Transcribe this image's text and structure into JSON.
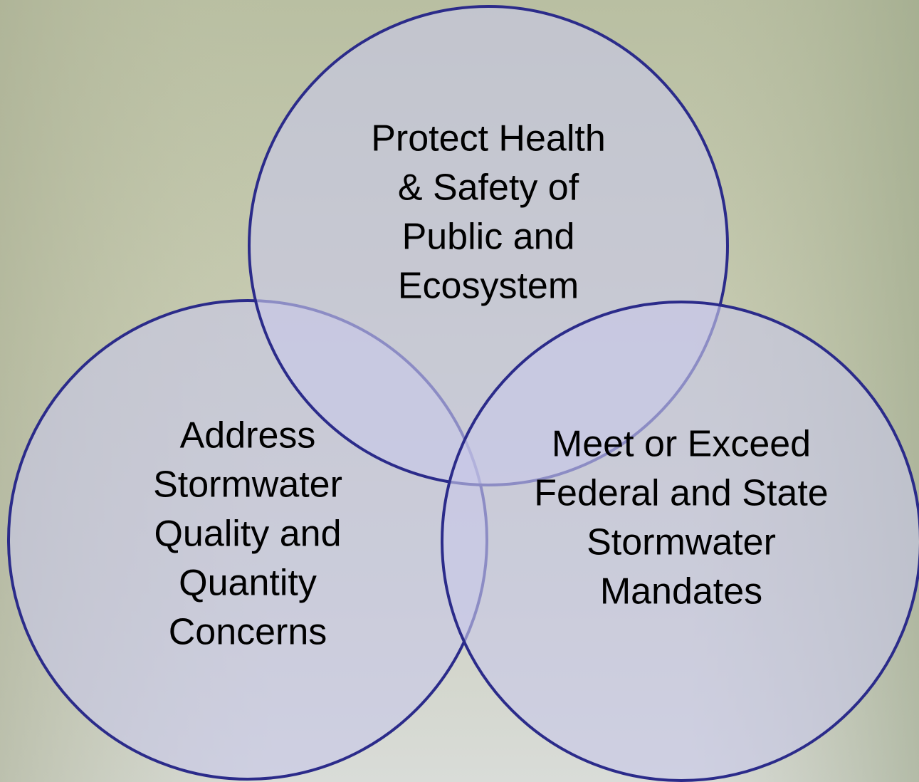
{
  "circles": [
    {
      "lines": [
        "Address",
        "Stormwater",
        "Quality and",
        "Quantity",
        "Concerns"
      ]
    },
    {
      "lines": [
        "Protect Health",
        "& Safety of",
        "Public and",
        "Ecosystem"
      ]
    },
    {
      "lines": [
        "Meet or Exceed",
        "Federal and State",
        "Stormwater",
        "Mandates"
      ]
    }
  ]
}
